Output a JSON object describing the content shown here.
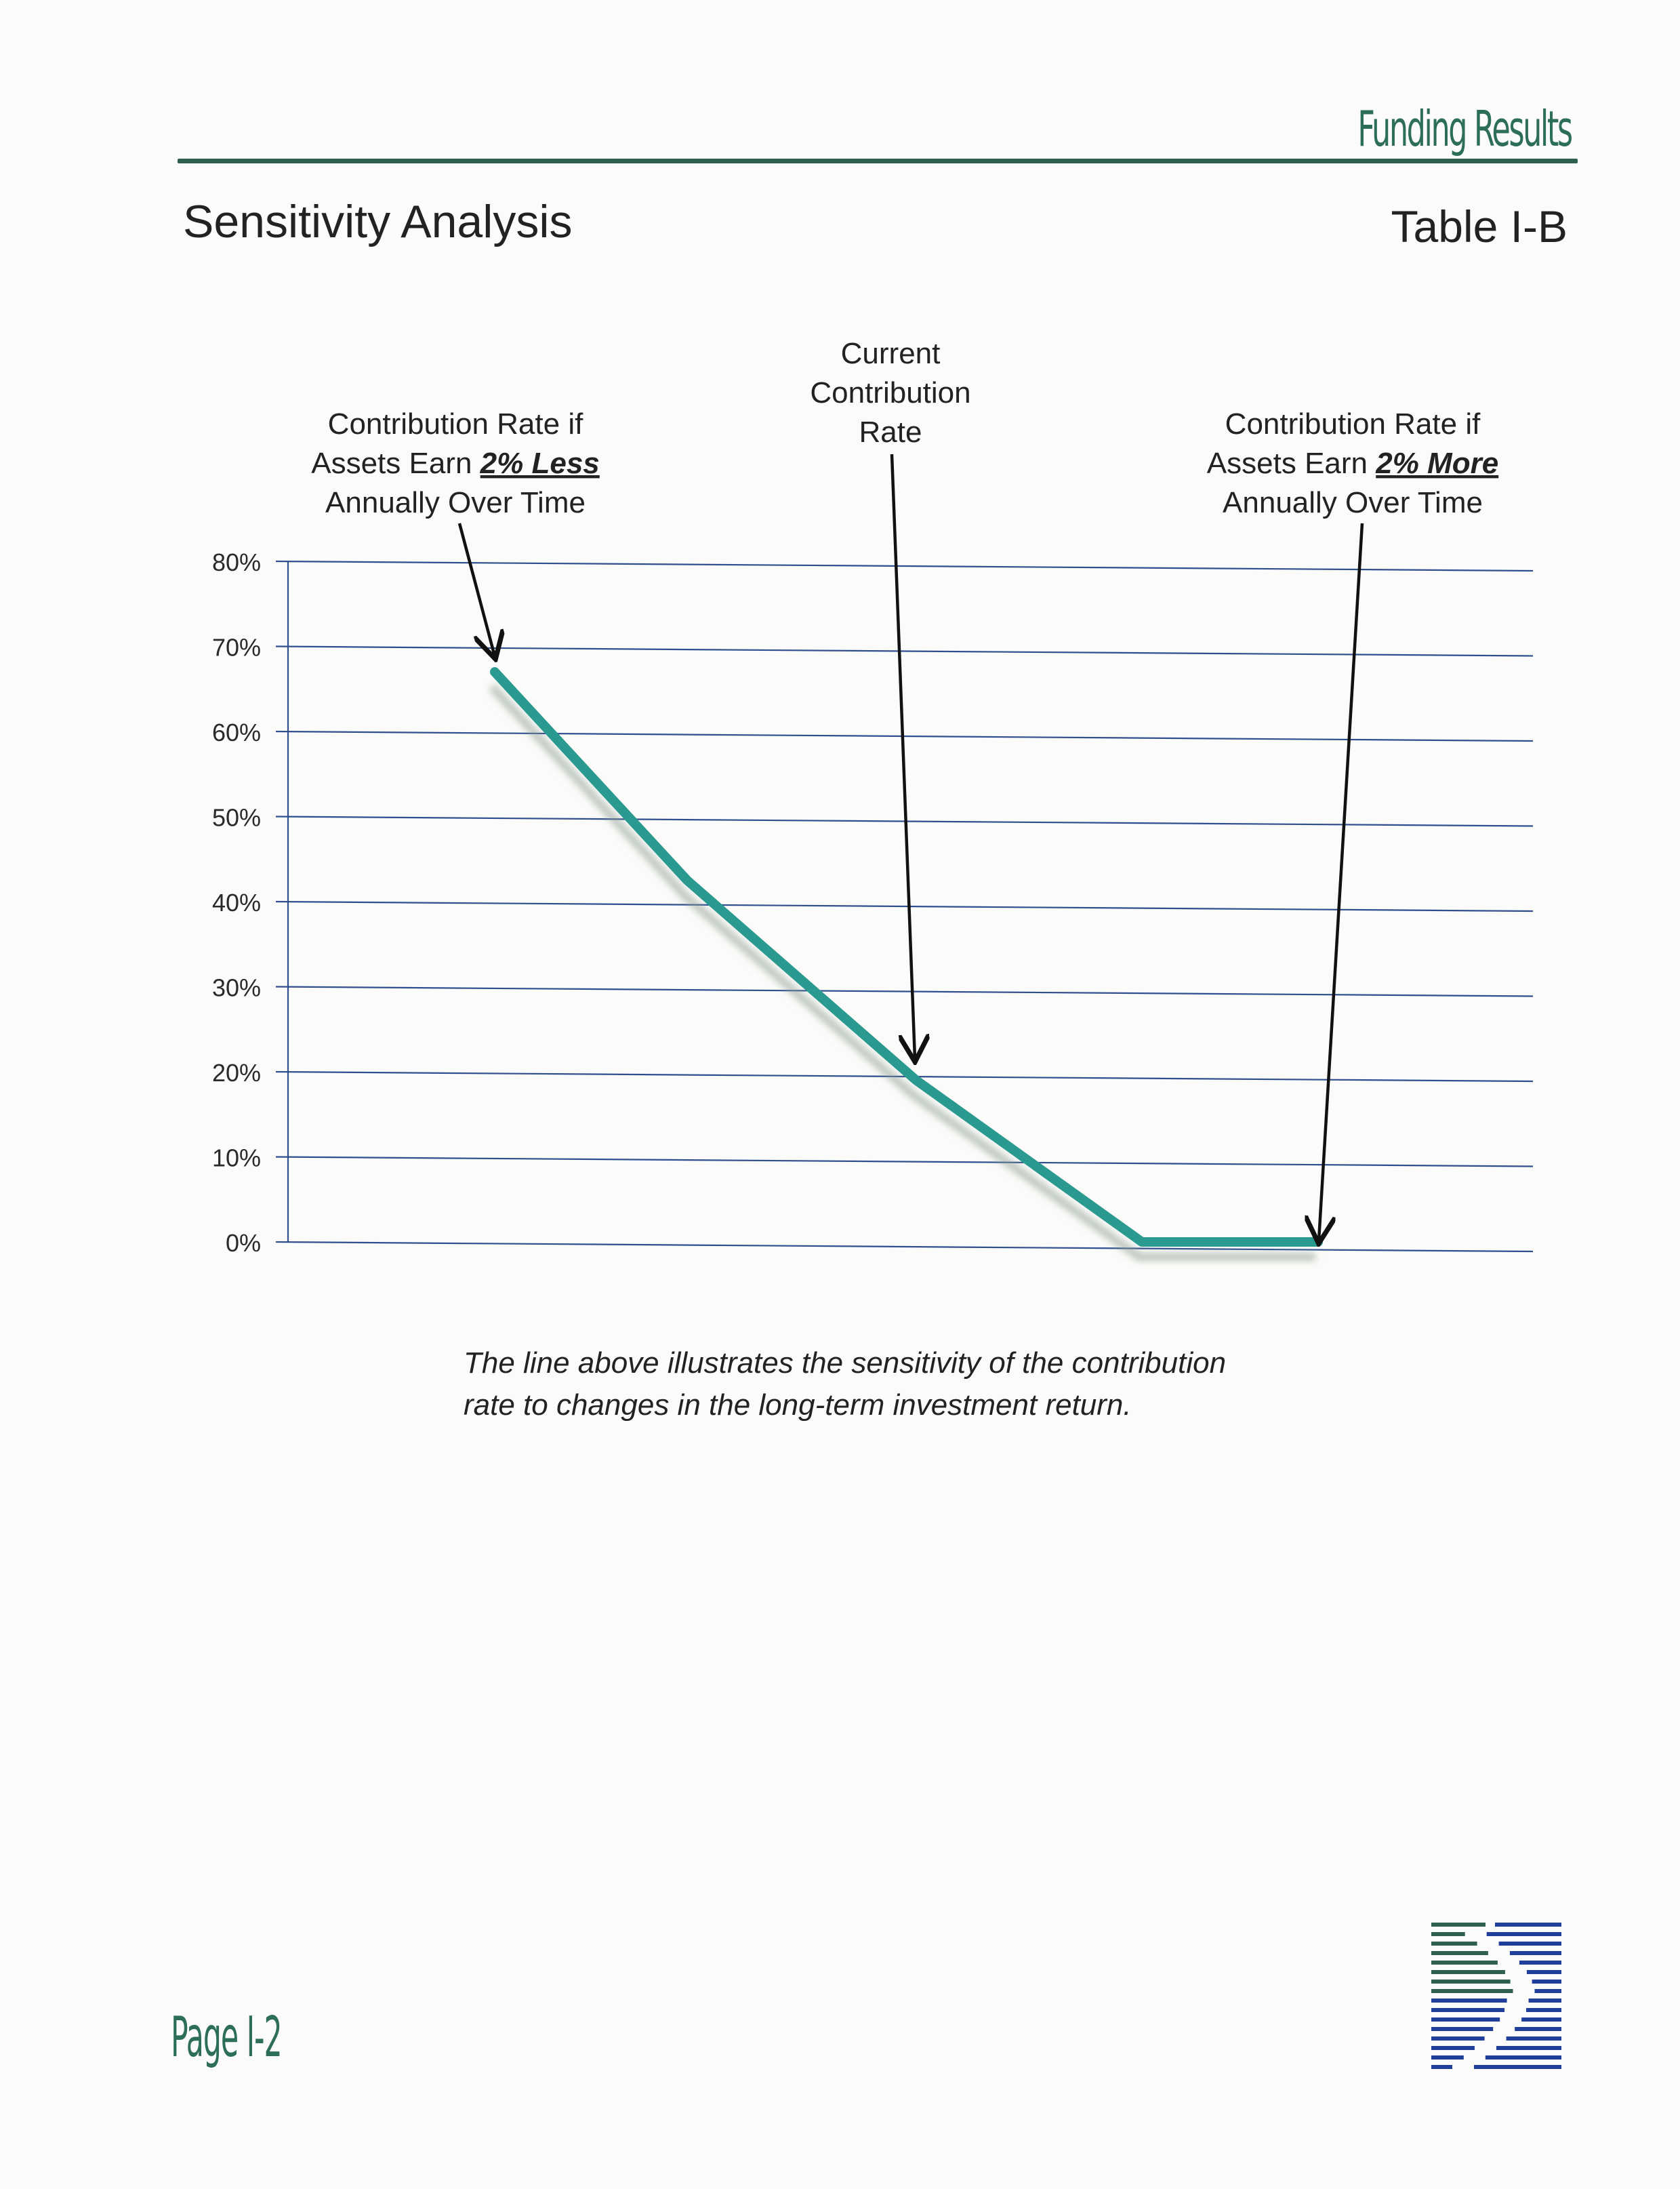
{
  "header": {
    "section_title": "Funding Results",
    "page_heading": "Sensitivity Analysis",
    "table_id": "Table I-B"
  },
  "chart_data": {
    "type": "line",
    "y_tick_labels": [
      "0%",
      "10%",
      "20%",
      "30%",
      "40%",
      "50%",
      "60%",
      "70%",
      "80%"
    ],
    "ylim": [
      0,
      80
    ],
    "grid": true,
    "x_positions": [
      0,
      1,
      2,
      3,
      4
    ],
    "values": [
      67,
      42.5,
      19,
      0,
      0
    ],
    "line_color": "#2a9a91",
    "annotations": [
      {
        "point_index": 0,
        "lines": [
          "Contribution Rate if",
          "Assets Earn |2% Less|",
          "Annually Over Time"
        ],
        "emphasis": "2% Less"
      },
      {
        "point_index": 2,
        "lines": [
          "Current",
          "Contribution",
          "Rate"
        ]
      },
      {
        "point_index": 4,
        "lines": [
          "Contribution Rate if",
          "Assets Earn |2% More|",
          "Annually Over Time"
        ],
        "emphasis": "2% More"
      }
    ]
  },
  "caption": {
    "line1": "The line above illustrates the sensitivity of the contribution",
    "line2": "rate to changes in the long-term investment return."
  },
  "footer": {
    "page_number": "Page I-2"
  },
  "logo": {
    "top_color": "#2f5f4f",
    "bottom_color": "#1f3f9a"
  }
}
